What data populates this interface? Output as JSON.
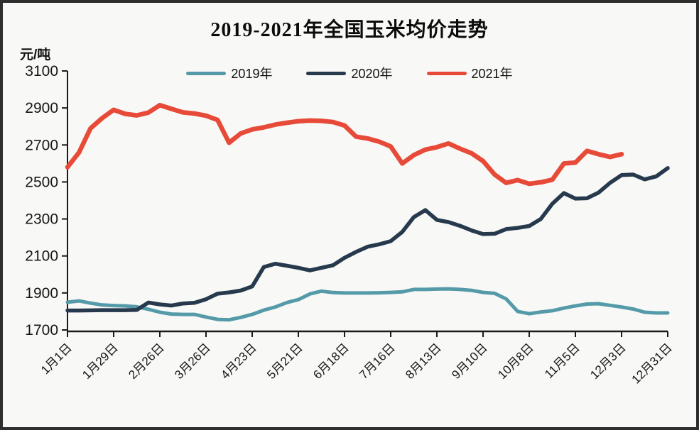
{
  "page": {
    "background": "#f8f8f6",
    "frame_color": "#2e2e2e"
  },
  "chart": {
    "title": "2019-2021年全国玉米均价走势",
    "y_unit": "元/吨",
    "axis_color": "#1a1a1a",
    "text_color": "#161616"
  },
  "chart_data": {
    "type": "line",
    "title": "2019-2021年全国玉米均价走势",
    "ylabel": "元/吨",
    "ylim": [
      1700,
      3100
    ],
    "y_ticks": [
      3100,
      2900,
      2700,
      2500,
      2300,
      2100,
      1900,
      1700
    ],
    "weeks": 53,
    "x_tick_every": 4,
    "x_tick_labels": [
      "1月1日",
      "1月29日",
      "2月26日",
      "3月26日",
      "4月23日",
      "5月21日",
      "6月18日",
      "7月16日",
      "8月13日",
      "9月10日",
      "10月8日",
      "11月5日",
      "12月3日",
      "12月31日"
    ],
    "grid": false,
    "legend_position": "top-center",
    "series": [
      {
        "name": "2019年",
        "color": "#559aa9",
        "stroke_width": 5,
        "values": [
          1850,
          1857,
          1845,
          1835,
          1832,
          1830,
          1825,
          1812,
          1796,
          1786,
          1784,
          1784,
          1770,
          1757,
          1755,
          1768,
          1784,
          1807,
          1824,
          1848,
          1864,
          1895,
          1910,
          1902,
          1900,
          1900,
          1900,
          1901,
          1903,
          1906,
          1919,
          1919,
          1921,
          1922,
          1919,
          1914,
          1903,
          1898,
          1868,
          1800,
          1788,
          1797,
          1804,
          1818,
          1830,
          1840,
          1842,
          1833,
          1824,
          1813,
          1796,
          1792,
          1792
        ]
      },
      {
        "name": "2020年",
        "color": "#27394c",
        "stroke_width": 5.5,
        "values": [
          1805,
          1805,
          1806,
          1807,
          1807,
          1807,
          1808,
          1848,
          1838,
          1832,
          1843,
          1847,
          1866,
          1896,
          1903,
          1913,
          1935,
          2040,
          2058,
          2047,
          2036,
          2022,
          2036,
          2050,
          2090,
          2122,
          2150,
          2163,
          2180,
          2230,
          2310,
          2348,
          2295,
          2283,
          2263,
          2238,
          2218,
          2220,
          2245,
          2252,
          2262,
          2300,
          2382,
          2440,
          2410,
          2412,
          2442,
          2495,
          2537,
          2540,
          2514,
          2530,
          2575
        ]
      },
      {
        "name": "2021年",
        "color": "#e74a38",
        "stroke_width": 6.5,
        "values": [
          2580,
          2660,
          2790,
          2845,
          2890,
          2868,
          2860,
          2875,
          2915,
          2895,
          2876,
          2870,
          2858,
          2835,
          2712,
          2762,
          2784,
          2795,
          2810,
          2820,
          2828,
          2832,
          2830,
          2824,
          2805,
          2745,
          2735,
          2718,
          2692,
          2600,
          2645,
          2675,
          2688,
          2708,
          2680,
          2655,
          2613,
          2540,
          2495,
          2510,
          2490,
          2498,
          2512,
          2600,
          2605,
          2668,
          2650,
          2635,
          2650
        ]
      }
    ]
  }
}
